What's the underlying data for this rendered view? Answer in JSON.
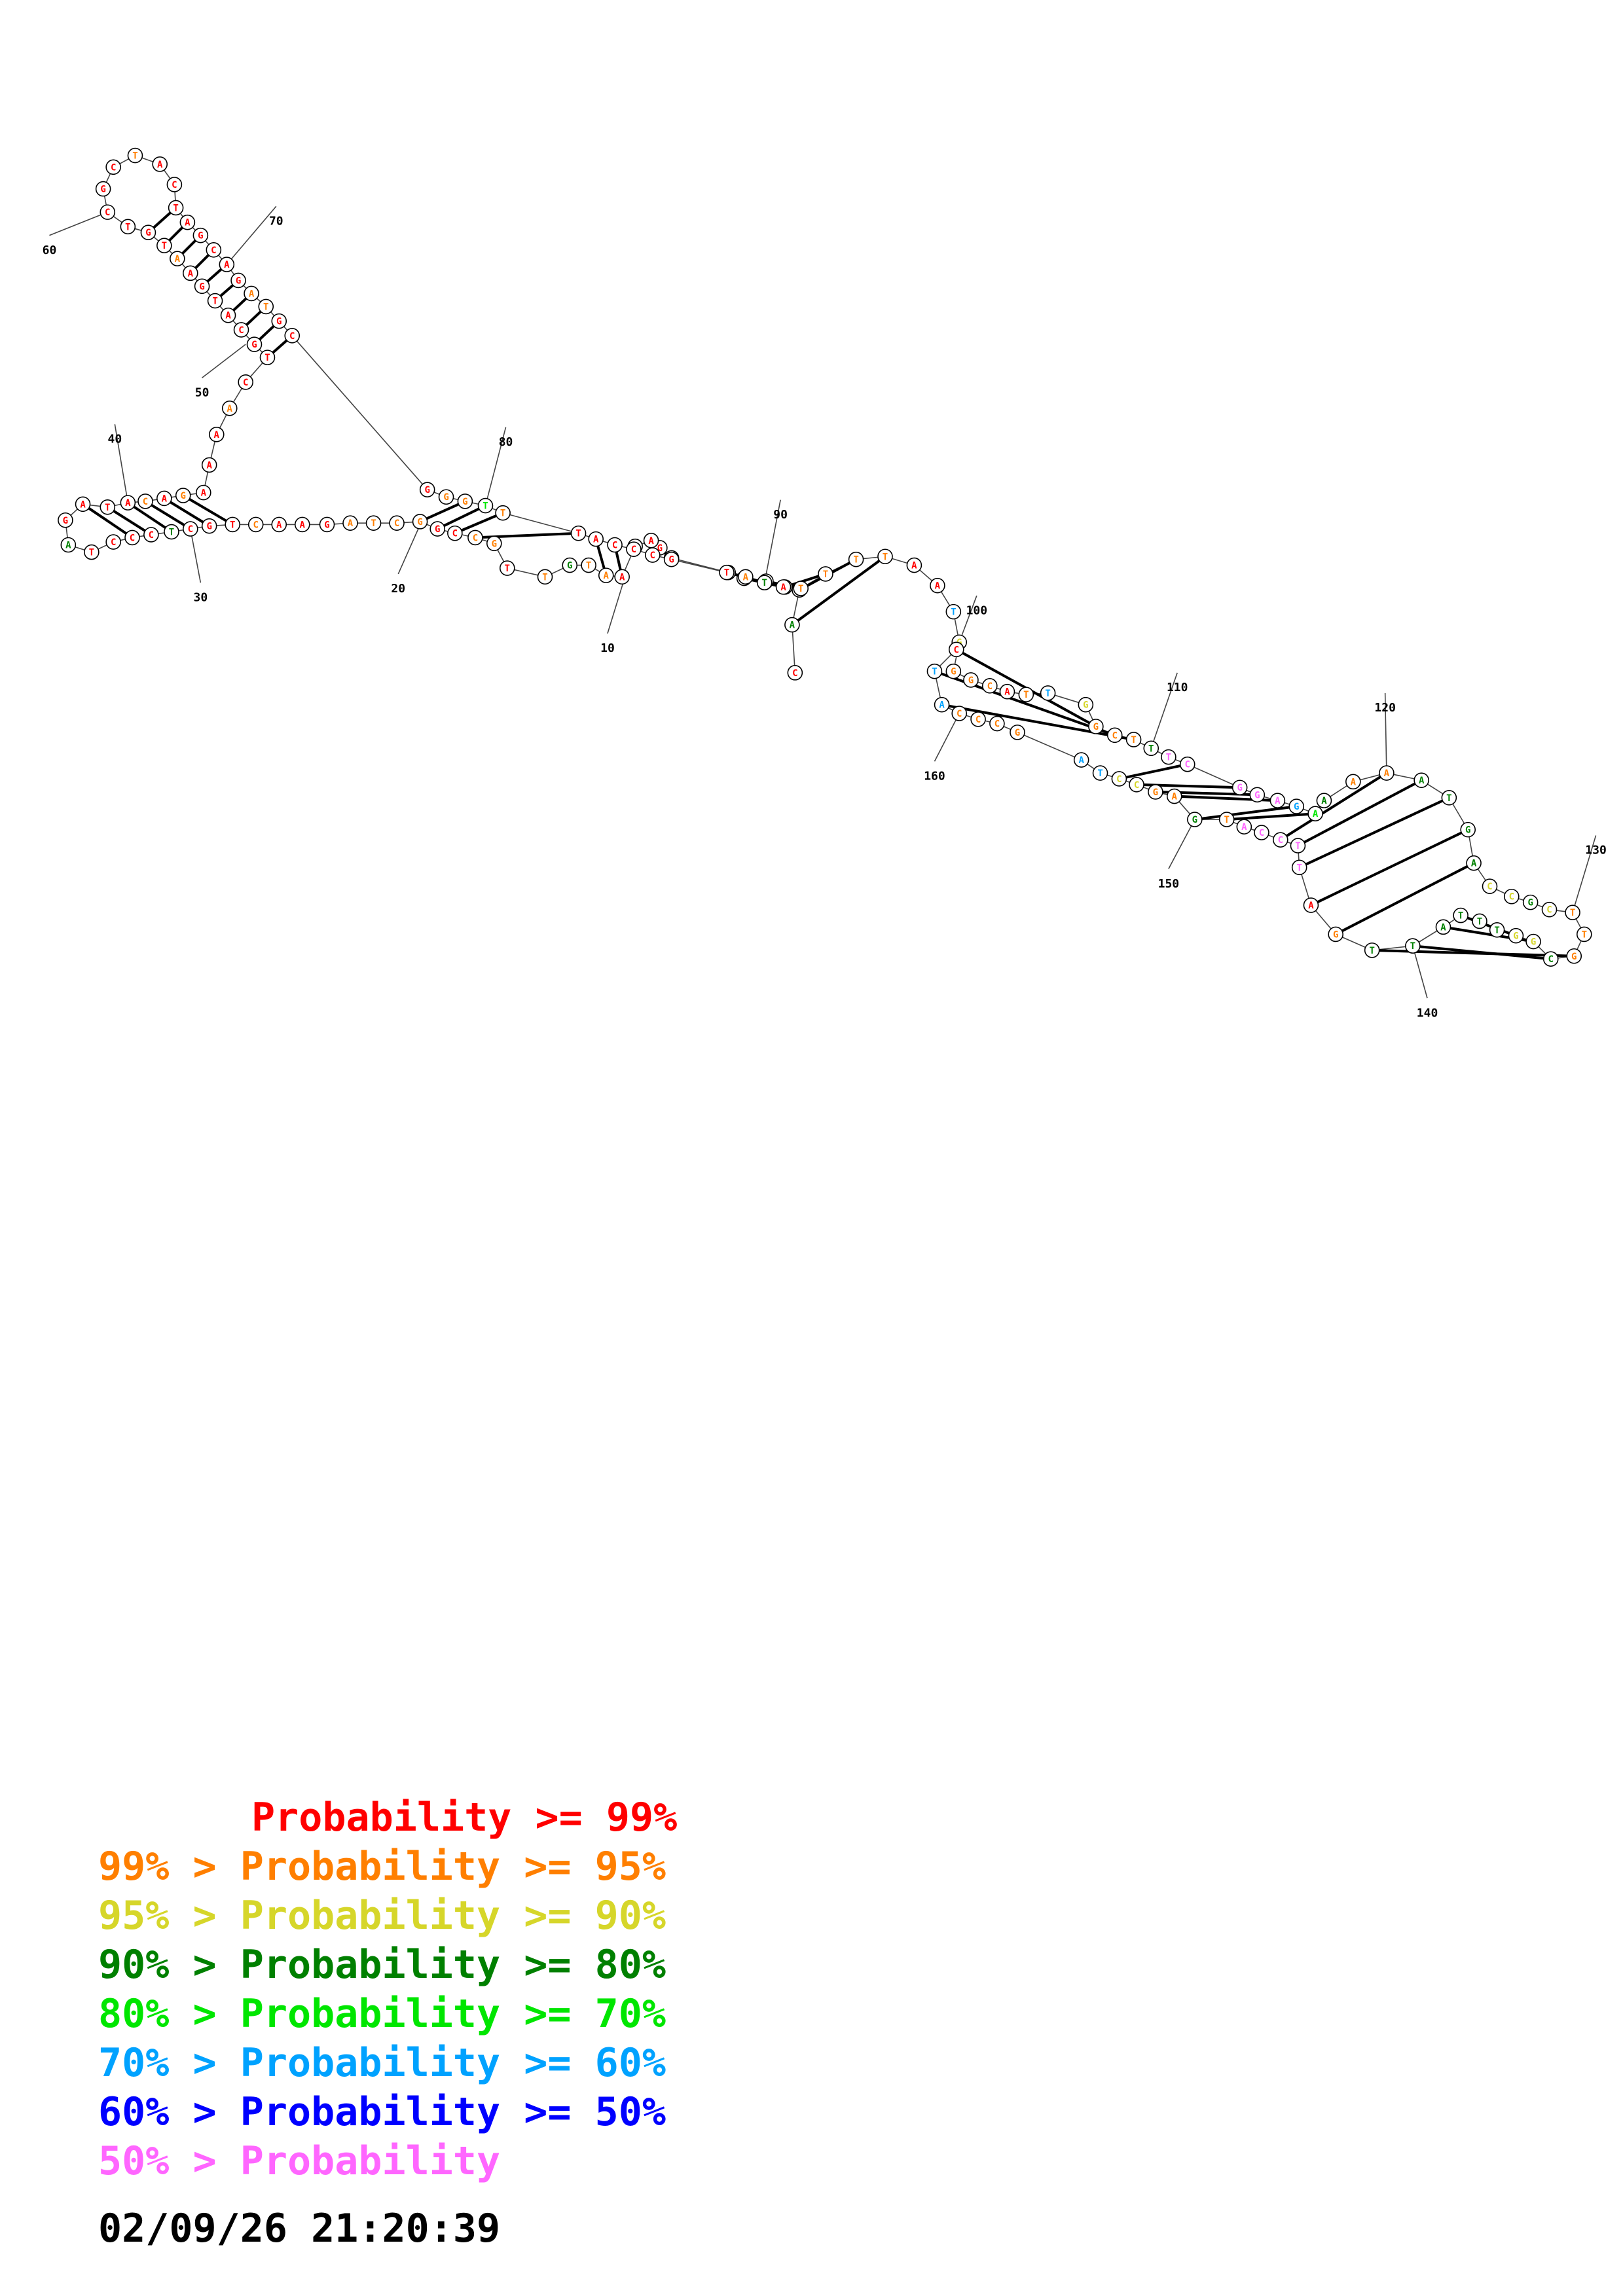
{
  "colors": {
    "p99": "#ff0000",
    "p95": "#ff7f00",
    "p90": "#d6d62a",
    "p80": "#008000",
    "p70": "#00e600",
    "p60": "#00a2ff",
    "p50": "#0000ff",
    "p0": "#ff66ff"
  },
  "legend": [
    {
      "prefix": "",
      "text": "Probability >= 99%",
      "color": "p99"
    },
    {
      "prefix": "99% > ",
      "text": "Probability >= 95%",
      "color": "p95"
    },
    {
      "prefix": "95% > ",
      "text": "Probability >= 90%",
      "color": "p90"
    },
    {
      "prefix": "90% > ",
      "text": "Probability >= 80%",
      "color": "p80"
    },
    {
      "prefix": "80% > ",
      "text": "Probability >= 70%",
      "color": "p70"
    },
    {
      "prefix": "70% > ",
      "text": "Probability >= 60%",
      "color": "p60"
    },
    {
      "prefix": "60% > ",
      "text": "Probability >= 50%",
      "color": "p50"
    },
    {
      "prefix": "50% > ",
      "text": "Probability",
      "color": "p0"
    }
  ],
  "timestamp": "02/09/26 21:20:39",
  "index_labels": [
    "10",
    "20",
    "30",
    "40",
    "50",
    "60",
    "70",
    "80",
    "90",
    "100",
    "110",
    "120",
    "130",
    "140",
    "150",
    "160"
  ],
  "sequence": [
    {
      "b": "C",
      "c": "p99"
    },
    {
      "b": "A",
      "c": "p80"
    },
    {
      "b": "T",
      "c": "p80"
    },
    {
      "b": "A",
      "c": "p95"
    },
    {
      "b": "C",
      "c": "p99"
    },
    {
      "b": "G",
      "c": "p99"
    },
    {
      "b": "A",
      "c": "p99"
    },
    {
      "b": "C",
      "c": "p99"
    },
    {
      "b": "G",
      "c": "p99"
    },
    {
      "b": "A",
      "c": "p99"
    },
    {
      "b": "T",
      "c": "p99"
    },
    {
      "b": "A",
      "c": "p99"
    },
    {
      "b": "A",
      "c": "p95"
    },
    {
      "b": "T",
      "c": "p95"
    },
    {
      "b": "G",
      "c": "p80"
    },
    {
      "b": "T",
      "c": "p95"
    },
    {
      "b": "T",
      "c": "p99"
    },
    {
      "b": "G",
      "c": "p95"
    },
    {
      "b": "C",
      "c": "p95"
    },
    {
      "b": "C",
      "c": "p99"
    },
    {
      "b": "G",
      "c": "p99"
    },
    {
      "b": "G",
      "c": "p95"
    },
    {
      "b": "C",
      "c": "p95"
    },
    {
      "b": "T",
      "c": "p95"
    },
    {
      "b": "A",
      "c": "p95"
    },
    {
      "b": "G",
      "c": "p99"
    },
    {
      "b": "A",
      "c": "p99"
    },
    {
      "b": "A",
      "c": "p99"
    },
    {
      "b": "C",
      "c": "p95"
    },
    {
      "b": "T",
      "c": "p99"
    },
    {
      "b": "G",
      "c": "p99"
    },
    {
      "b": "C",
      "c": "p99"
    },
    {
      "b": "T",
      "c": "p80"
    },
    {
      "b": "C",
      "c": "p99"
    },
    {
      "b": "C",
      "c": "p99"
    },
    {
      "b": "C",
      "c": "p99"
    },
    {
      "b": "T",
      "c": "p99"
    },
    {
      "b": "A",
      "c": "p80"
    },
    {
      "b": "G",
      "c": "p99"
    },
    {
      "b": "A",
      "c": "p99"
    },
    {
      "b": "T",
      "c": "p99"
    },
    {
      "b": "A",
      "c": "p99"
    },
    {
      "b": "C",
      "c": "p95"
    },
    {
      "b": "A",
      "c": "p99"
    },
    {
      "b": "G",
      "c": "p95"
    },
    {
      "b": "A",
      "c": "p99"
    },
    {
      "b": "A",
      "c": "p99"
    },
    {
      "b": "A",
      "c": "p99"
    },
    {
      "b": "A",
      "c": "p95"
    },
    {
      "b": "C",
      "c": "p99"
    },
    {
      "b": "T",
      "c": "p99"
    },
    {
      "b": "G",
      "c": "p99"
    },
    {
      "b": "C",
      "c": "p99"
    },
    {
      "b": "A",
      "c": "p99"
    },
    {
      "b": "T",
      "c": "p99"
    },
    {
      "b": "G",
      "c": "p99"
    },
    {
      "b": "A",
      "c": "p99"
    },
    {
      "b": "A",
      "c": "p95"
    },
    {
      "b": "T",
      "c": "p99"
    },
    {
      "b": "G",
      "c": "p99"
    },
    {
      "b": "T",
      "c": "p99"
    },
    {
      "b": "C",
      "c": "p99"
    },
    {
      "b": "G",
      "c": "p99"
    },
    {
      "b": "C",
      "c": "p99"
    },
    {
      "b": "T",
      "c": "p95"
    },
    {
      "b": "A",
      "c": "p99"
    },
    {
      "b": "C",
      "c": "p99"
    },
    {
      "b": "T",
      "c": "p99"
    },
    {
      "b": "A",
      "c": "p99"
    },
    {
      "b": "G",
      "c": "p99"
    },
    {
      "b": "C",
      "c": "p99"
    },
    {
      "b": "A",
      "c": "p99"
    },
    {
      "b": "G",
      "c": "p99"
    },
    {
      "b": "A",
      "c": "p95"
    },
    {
      "b": "T",
      "c": "p95"
    },
    {
      "b": "G",
      "c": "p99"
    },
    {
      "b": "C",
      "c": "p99"
    },
    {
      "b": "G",
      "c": "p99"
    },
    {
      "b": "G",
      "c": "p95"
    },
    {
      "b": "G",
      "c": "p95"
    },
    {
      "b": "T",
      "c": "p70"
    },
    {
      "b": "T",
      "c": "p95"
    },
    {
      "b": "T",
      "c": "p99"
    },
    {
      "b": "A",
      "c": "p99"
    },
    {
      "b": "C",
      "c": "p99"
    },
    {
      "b": "C",
      "c": "p99"
    },
    {
      "b": "C",
      "c": "p99"
    },
    {
      "b": "G",
      "c": "p99"
    },
    {
      "b": "T",
      "c": "p99"
    },
    {
      "b": "A",
      "c": "p95"
    },
    {
      "b": "T",
      "c": "p80"
    },
    {
      "b": "A",
      "c": "p99"
    },
    {
      "b": "T",
      "c": "p95"
    },
    {
      "b": "T",
      "c": "p95"
    },
    {
      "b": "T",
      "c": "p95"
    },
    {
      "b": "T",
      "c": "p95"
    },
    {
      "b": "A",
      "c": "p99"
    },
    {
      "b": "A",
      "c": "p99"
    },
    {
      "b": "T",
      "c": "p60"
    },
    {
      "b": "G",
      "c": "p90"
    },
    {
      "b": "G",
      "c": "p95"
    },
    {
      "b": "G",
      "c": "p95"
    },
    {
      "b": "C",
      "c": "p95"
    },
    {
      "b": "A",
      "c": "p99"
    },
    {
      "b": "T",
      "c": "p95"
    },
    {
      "b": "T",
      "c": "p60"
    },
    {
      "b": "G",
      "c": "p90"
    },
    {
      "b": "G",
      "c": "p95"
    },
    {
      "b": "C",
      "c": "p95"
    },
    {
      "b": "T",
      "c": "p95"
    },
    {
      "b": "T",
      "c": "p80"
    },
    {
      "b": "T",
      "c": "p0"
    },
    {
      "b": "C",
      "c": "p0"
    },
    {
      "b": "G",
      "c": "p0"
    },
    {
      "b": "G",
      "c": "p0"
    },
    {
      "b": "A",
      "c": "p0"
    },
    {
      "b": "G",
      "c": "p60"
    },
    {
      "b": "A",
      "c": "p70"
    },
    {
      "b": "A",
      "c": "p80"
    },
    {
      "b": "A",
      "c": "p95"
    },
    {
      "b": "A",
      "c": "p95"
    },
    {
      "b": "A",
      "c": "p80"
    },
    {
      "b": "T",
      "c": "p80"
    },
    {
      "b": "G",
      "c": "p80"
    },
    {
      "b": "A",
      "c": "p80"
    },
    {
      "b": "C",
      "c": "p90"
    },
    {
      "b": "C",
      "c": "p90"
    },
    {
      "b": "G",
      "c": "p80"
    },
    {
      "b": "C",
      "c": "p90"
    },
    {
      "b": "T",
      "c": "p95"
    },
    {
      "b": "T",
      "c": "p95"
    },
    {
      "b": "G",
      "c": "p95"
    },
    {
      "b": "C",
      "c": "p80"
    },
    {
      "b": "G",
      "c": "p90"
    },
    {
      "b": "G",
      "c": "p90"
    },
    {
      "b": "T",
      "c": "p80"
    },
    {
      "b": "T",
      "c": "p80"
    },
    {
      "b": "T",
      "c": "p80"
    },
    {
      "b": "A",
      "c": "p80"
    },
    {
      "b": "T",
      "c": "p80"
    },
    {
      "b": "T",
      "c": "p80"
    },
    {
      "b": "G",
      "c": "p95"
    },
    {
      "b": "A",
      "c": "p99"
    },
    {
      "b": "T",
      "c": "p0"
    },
    {
      "b": "T",
      "c": "p0"
    },
    {
      "b": "C",
      "c": "p0"
    },
    {
      "b": "C",
      "c": "p0"
    },
    {
      "b": "A",
      "c": "p0"
    },
    {
      "b": "T",
      "c": "p95"
    },
    {
      "b": "G",
      "c": "p80"
    },
    {
      "b": "A",
      "c": "p95"
    },
    {
      "b": "G",
      "c": "p95"
    },
    {
      "b": "C",
      "c": "p90"
    },
    {
      "b": "C",
      "c": "p90"
    },
    {
      "b": "T",
      "c": "p60"
    },
    {
      "b": "A",
      "c": "p60"
    },
    {
      "b": "G",
      "c": "p95"
    },
    {
      "b": "C",
      "c": "p95"
    },
    {
      "b": "C",
      "c": "p95"
    },
    {
      "b": "C",
      "c": "p95"
    },
    {
      "b": "A",
      "c": "p60"
    },
    {
      "b": "T",
      "c": "p60"
    },
    {
      "b": "C",
      "c": "p99"
    }
  ]
}
